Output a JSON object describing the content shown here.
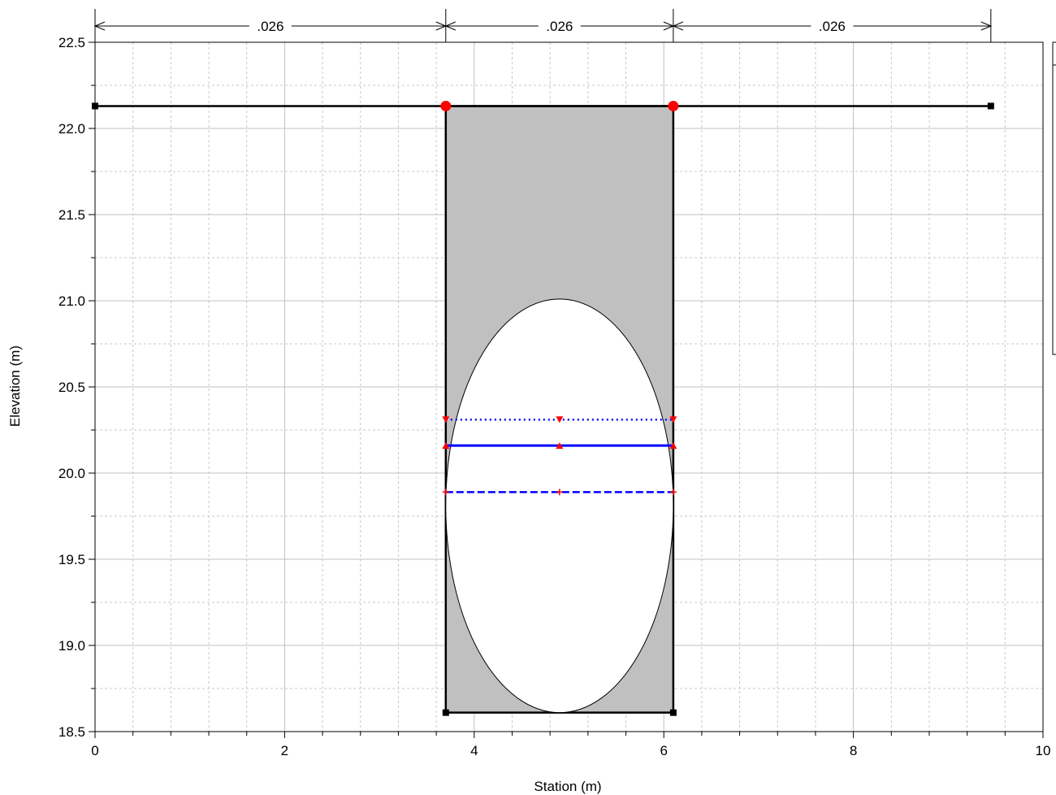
{
  "chart_data": {
    "type": "line",
    "xlabel": "Station (m)",
    "ylabel": "Elevation (m)",
    "xlim": [
      0,
      10
    ],
    "ylim": [
      18.5,
      22.5
    ],
    "x_ticks": [
      0,
      2,
      4,
      6,
      8,
      10
    ],
    "x_tick_labels": [
      "0",
      "2",
      "4",
      "6",
      "8",
      "10"
    ],
    "y_ticks": [
      18.5,
      19.0,
      19.5,
      20.0,
      20.5,
      21.0,
      21.5,
      22.0,
      22.5
    ],
    "y_tick_labels": [
      "18.5",
      "19.0",
      "19.5",
      "20.0",
      "20.5",
      "21.0",
      "21.5",
      "22.0",
      "22.5"
    ],
    "grid": true,
    "manning_n": {
      "values": [
        ".026",
        ".026",
        ".026"
      ],
      "breaks": [
        0,
        3.7,
        6.1,
        9.45
      ]
    },
    "ground": {
      "x": [
        0,
        3.7,
        6.1,
        9.45
      ],
      "y": [
        22.13,
        22.13,
        22.13,
        22.13
      ],
      "color": "#000000"
    },
    "bank_stations": {
      "x": [
        3.7,
        6.1
      ],
      "y": [
        22.13,
        22.13
      ],
      "color": "#ff0000"
    },
    "culvert_box": {
      "x": [
        3.7,
        3.7,
        6.1,
        6.1
      ],
      "y": [
        18.61,
        22.13,
        22.13,
        18.61
      ],
      "fill": "#c0c0c0"
    },
    "culvert_ellipse": {
      "center_x": 4.9,
      "center_y": 19.81,
      "radius_x": 1.2,
      "radius_y": 1.2
    },
    "series": [
      {
        "style": "dotted",
        "x": [
          3.7,
          4.9,
          6.1
        ],
        "y": [
          20.31,
          20.31,
          20.31
        ],
        "color": "#0000ff",
        "marker": "triangle-down",
        "marker_color": "#ff0000"
      },
      {
        "style": "solid",
        "x": [
          3.7,
          4.9,
          6.1
        ],
        "y": [
          20.16,
          20.16,
          20.16
        ],
        "color": "#0000ff",
        "marker": "triangle-up",
        "marker_color": "#ff0000"
      },
      {
        "style": "dashed",
        "x": [
          3.7,
          4.9,
          6.1
        ],
        "y": [
          19.89,
          19.89,
          19.89
        ],
        "color": "#0000ff",
        "marker": "plus",
        "marker_color": "#ff0000"
      }
    ]
  }
}
